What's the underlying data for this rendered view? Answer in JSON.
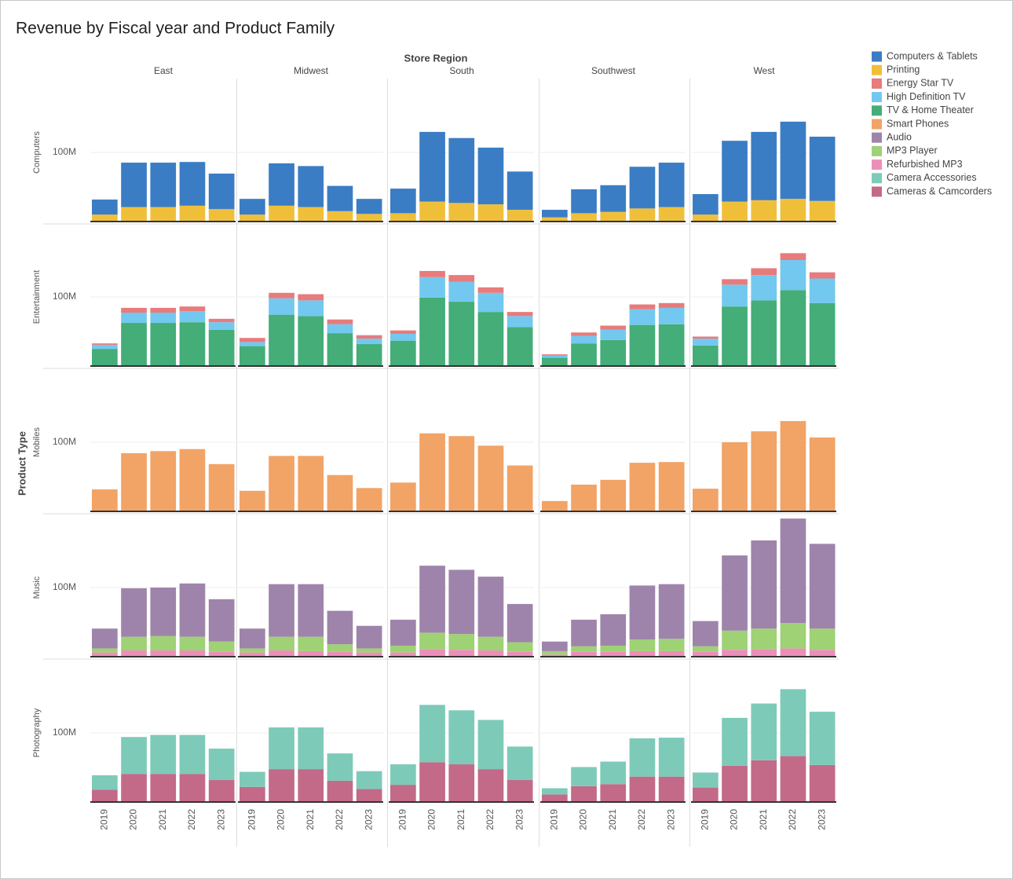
{
  "chart_data": {
    "type": "bar",
    "stacked": true,
    "title": "Revenue by Fiscal year and Product Family",
    "column_title": "Store Region",
    "row_title": "Product Type",
    "columns": [
      "East",
      "Midwest",
      "South",
      "Southwest",
      "West"
    ],
    "categories": [
      "2019",
      "2020",
      "2021",
      "2022",
      "2023"
    ],
    "ylim": [
      0,
      205
    ],
    "yticks": [
      {
        "value": 100,
        "label": "100M"
      }
    ],
    "grid": true,
    "legend": "right",
    "rows": [
      {
        "name": "Computers",
        "series": [
          {
            "name": "Computers & Tablets",
            "color": "#3b7dc4",
            "values": [
              [
                22,
                65,
                65,
                64,
                52
              ],
              [
                23,
                62,
                60,
                37,
                22
              ],
              [
                36,
                102,
                95,
                83,
                56
              ],
              [
                11,
                35,
                39,
                61,
                65
              ],
              [
                30,
                89,
                100,
                113,
                94
              ]
            ]
          },
          {
            "name": "Printing",
            "color": "#f0bf3a",
            "values": [
              [
                9,
                20,
                20,
                22,
                17
              ],
              [
                9,
                22,
                20,
                14,
                10
              ],
              [
                11,
                28,
                26,
                24,
                16
              ],
              [
                5,
                11,
                13,
                18,
                20
              ],
              [
                9,
                28,
                30,
                32,
                29
              ]
            ]
          }
        ]
      },
      {
        "name": "Entertainment",
        "series": [
          {
            "name": "Energy Star TV",
            "color": "#e87b7b",
            "values": [
              [
                2,
                7,
                7,
                7,
                5
              ],
              [
                6,
                8,
                9,
                7,
                5
              ],
              [
                5,
                9,
                10,
                8,
                6
              ],
              [
                2,
                5,
                6,
                7,
                7
              ],
              [
                3,
                8,
                10,
                10,
                9
              ]
            ]
          },
          {
            "name": "High Definition TV",
            "color": "#73c8ef",
            "values": [
              [
                6,
                15,
                15,
                16,
                11
              ],
              [
                6,
                24,
                23,
                13,
                8
              ],
              [
                10,
                30,
                29,
                28,
                16
              ],
              [
                3,
                11,
                15,
                23,
                24
              ],
              [
                10,
                32,
                37,
                44,
                36
              ]
            ]
          },
          {
            "name": "TV & Home Theater",
            "color": "#44ad78",
            "values": [
              [
                24,
                62,
                62,
                63,
                52
              ],
              [
                28,
                74,
                72,
                47,
                31
              ],
              [
                36,
                99,
                93,
                78,
                56
              ],
              [
                11,
                32,
                37,
                59,
                60
              ],
              [
                29,
                86,
                95,
                110,
                91
              ]
            ]
          }
        ]
      },
      {
        "name": "Mobiles",
        "series": [
          {
            "name": "Smart Phones",
            "color": "#f2a366",
            "values": [
              [
                31,
                84,
                87,
                90,
                68
              ],
              [
                29,
                80,
                80,
                52,
                33
              ],
              [
                41,
                113,
                109,
                95,
                66
              ],
              [
                14,
                38,
                45,
                70,
                71
              ],
              [
                32,
                100,
                116,
                131,
                107
              ]
            ]
          }
        ]
      },
      {
        "name": "Music",
        "series": [
          {
            "name": "Audio",
            "color": "#9e84ab",
            "values": [
              [
                29,
                71,
                71,
                78,
                62
              ],
              [
                29,
                77,
                77,
                49,
                33
              ],
              [
                38,
                98,
                94,
                88,
                56
              ],
              [
                14,
                39,
                46,
                79,
                80
              ],
              [
                37,
                110,
                129,
                153,
                124
              ]
            ]
          },
          {
            "name": "MP3 Player",
            "color": "#9fd175",
            "values": [
              [
                6,
                20,
                21,
                20,
                15
              ],
              [
                6,
                20,
                21,
                11,
                6
              ],
              [
                10,
                24,
                23,
                20,
                14
              ],
              [
                5,
                8,
                9,
                17,
                18
              ],
              [
                8,
                28,
                30,
                37,
                31
              ]
            ]
          },
          {
            "name": "Refurbished MP3",
            "color": "#ec8fb8",
            "values": [
              [
                5,
                8,
                8,
                8,
                6
              ],
              [
                5,
                8,
                7,
                6,
                5
              ],
              [
                5,
                10,
                9,
                8,
                6
              ],
              [
                2,
                6,
                6,
                7,
                7
              ],
              [
                6,
                9,
                10,
                11,
                9
              ]
            ]
          }
        ]
      },
      {
        "name": "Photography",
        "series": [
          {
            "name": "Camera Accessories",
            "color": "#7ecab9",
            "values": [
              [
                21,
                54,
                57,
                57,
                46
              ],
              [
                22,
                61,
                61,
                40,
                26
              ],
              [
                30,
                84,
                79,
                72,
                49
              ],
              [
                9,
                28,
                33,
                56,
                57
              ],
              [
                22,
                70,
                83,
                98,
                78
              ]
            ]
          },
          {
            "name": "Cameras & Camcorders",
            "color": "#c36a88",
            "values": [
              [
                17,
                40,
                40,
                40,
                31
              ],
              [
                21,
                47,
                47,
                30,
                18
              ],
              [
                24,
                57,
                54,
                47,
                31
              ],
              [
                10,
                22,
                25,
                36,
                36
              ],
              [
                20,
                52,
                60,
                66,
                53
              ]
            ]
          }
        ]
      }
    ]
  }
}
